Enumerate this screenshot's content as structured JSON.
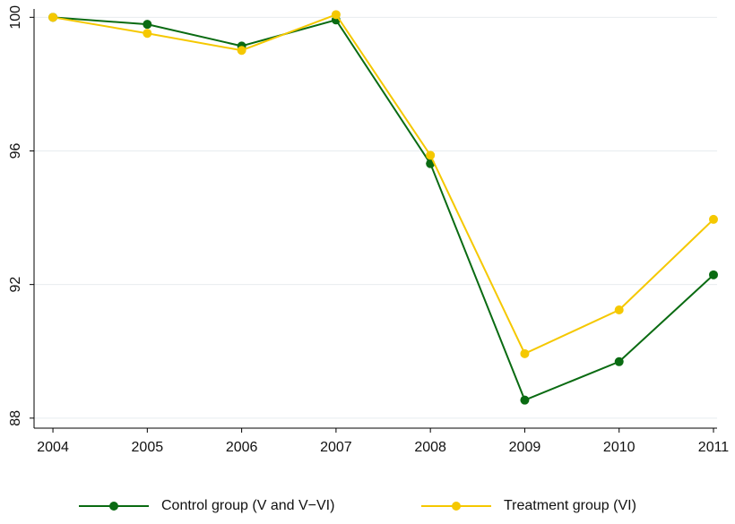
{
  "chart_data": {
    "type": "line",
    "x": [
      2004,
      2005,
      2006,
      2007,
      2008,
      2009,
      2010,
      2011
    ],
    "series": [
      {
        "name": "Control group (V and V−VI)",
        "color": "#0a6b12",
        "values": [
          100,
          99.79,
          99.14,
          99.92,
          95.62,
          88.54,
          89.69,
          92.29
        ]
      },
      {
        "name": "Treatment group (VI)",
        "color": "#f5c800",
        "values": [
          100,
          99.52,
          99.01,
          100.08,
          95.87,
          89.93,
          91.24,
          93.95
        ]
      }
    ],
    "xlim": [
      2003.8,
      2011
    ],
    "xticks": [
      2004,
      2005,
      2006,
      2007,
      2008,
      2009,
      2010,
      2011
    ],
    "ylim": [
      87.7,
      100.25
    ],
    "yticks": [
      88,
      92,
      96,
      100
    ],
    "grid": true,
    "legend": "bottom"
  }
}
